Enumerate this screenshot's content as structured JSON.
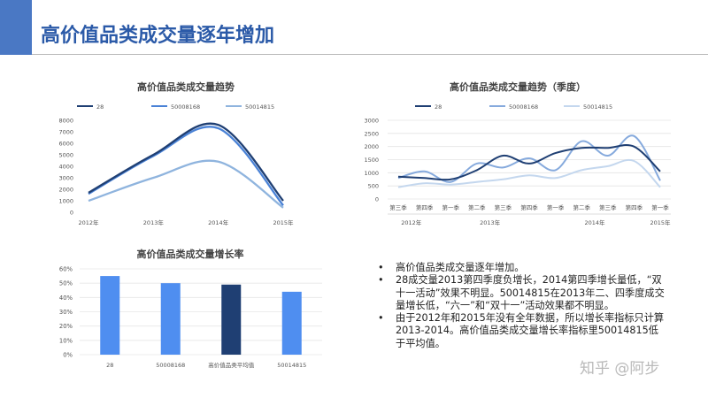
{
  "header": {
    "title": "高价值品类成交量逐年增加"
  },
  "chart_data": [
    {
      "type": "line",
      "title": "高价值品类成交量趋势",
      "categories": [
        "2012年",
        "2013年",
        "2014年",
        "2015年"
      ],
      "ylim": [
        0,
        8000
      ],
      "yticks": [
        0,
        1000,
        2000,
        3000,
        4000,
        5000,
        6000,
        7000,
        8000
      ],
      "legend": "top",
      "series": [
        {
          "name": "28",
          "color": "#1f3f73",
          "values": [
            1700,
            5000,
            7600,
            1000
          ]
        },
        {
          "name": "50008168",
          "color": "#4a82d6",
          "values": [
            1600,
            4900,
            7300,
            600
          ]
        },
        {
          "name": "50014815",
          "color": "#8fb4de",
          "values": [
            1000,
            3000,
            4400,
            400
          ]
        }
      ]
    },
    {
      "type": "line",
      "title": "高价值品类成交量趋势（季度）",
      "categories": [
        "第三季",
        "第四季",
        "第一季",
        "第二季",
        "第三季",
        "第四季",
        "第一季",
        "第二季",
        "第三季",
        "第四季",
        "第一季"
      ],
      "years": [
        {
          "label": "2012年",
          "index": 0.5
        },
        {
          "label": "2013年",
          "index": 3.5
        },
        {
          "label": "2014年",
          "index": 7.5
        },
        {
          "label": "2015年",
          "index": 10
        }
      ],
      "ylim": [
        0,
        3000
      ],
      "yticks": [
        0,
        500,
        1000,
        1500,
        2000,
        2500,
        3000
      ],
      "legend": "top",
      "series": [
        {
          "name": "28",
          "color": "#1f3f73",
          "values": [
            850,
            800,
            750,
            1100,
            1650,
            1350,
            1750,
            1950,
            1950,
            2000,
            1050
          ]
        },
        {
          "name": "50008168",
          "color": "#86aadd",
          "values": [
            800,
            1050,
            650,
            1350,
            1200,
            1550,
            1100,
            2200,
            1650,
            2400,
            700
          ]
        },
        {
          "name": "50014815",
          "color": "#c4d7ee",
          "values": [
            450,
            600,
            550,
            650,
            750,
            900,
            800,
            1100,
            1250,
            1450,
            450
          ]
        }
      ]
    },
    {
      "type": "bar",
      "title": "高价值品类成交量增长率",
      "categories": [
        "28",
        "50008168",
        "高价值品类平均值",
        "50014815"
      ],
      "values": [
        55,
        50,
        49,
        44
      ],
      "ylim": [
        0,
        60
      ],
      "yticks": [
        "0%",
        "10%",
        "20%",
        "30%",
        "40%",
        "50%",
        "60%"
      ],
      "colors": [
        "#4f8ef0",
        "#4f8ef0",
        "#1f3f73",
        "#4f8ef0"
      ]
    }
  ],
  "notes": [
    "高价值品类成交量逐年增加。",
    "28成交量2013第四季度负增长，2014第四季增长量低，“双十一活动”效果不明显。50014815在2013年二、四季度成交量增长低，“六一”和“双十一”活动效果都不明显。",
    "由于2012年和2015年没有全年数据，所以增长率指标只计算2013-2014。高价值品类成交量增长率指标里50014815低于平均值。"
  ],
  "watermark": "知乎 @阿步"
}
